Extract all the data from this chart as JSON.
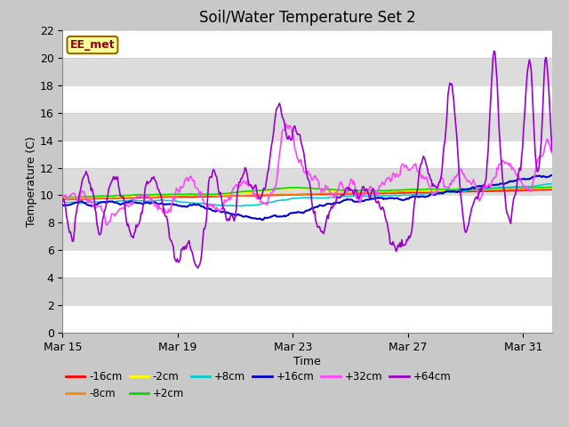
{
  "title": "Soil/Water Temperature Set 2",
  "xlabel": "Time",
  "ylabel": "Temperature (C)",
  "ylim": [
    0,
    22
  ],
  "xlim_days": [
    0,
    17
  ],
  "yticks": [
    0,
    2,
    4,
    6,
    8,
    10,
    12,
    14,
    16,
    18,
    20,
    22
  ],
  "xtick_labels": [
    "Mar 15",
    "Mar 19",
    "Mar 23",
    "Mar 27",
    "Mar 31"
  ],
  "xtick_positions": [
    0,
    4,
    8,
    12,
    16
  ],
  "series": {
    "-16cm": {
      "color": "#FF0000",
      "lw": 1.2
    },
    "-8cm": {
      "color": "#FF8800",
      "lw": 1.2
    },
    "-2cm": {
      "color": "#FFFF00",
      "lw": 1.2
    },
    "+2cm": {
      "color": "#00DD00",
      "lw": 1.2
    },
    "+8cm": {
      "color": "#00CCCC",
      "lw": 1.2
    },
    "+16cm": {
      "color": "#0000CC",
      "lw": 1.5
    },
    "+32cm": {
      "color": "#FF44FF",
      "lw": 1.2
    },
    "+64cm": {
      "color": "#9900CC",
      "lw": 1.2
    }
  },
  "annotation_text": "EE_met",
  "annotation_bg": "#FFFF99",
  "annotation_border": "#996600",
  "fig_bg": "#C8C8C8",
  "plot_bg": "#DCDCDC",
  "grid_color": "#F0F0F0",
  "num_points": 500
}
